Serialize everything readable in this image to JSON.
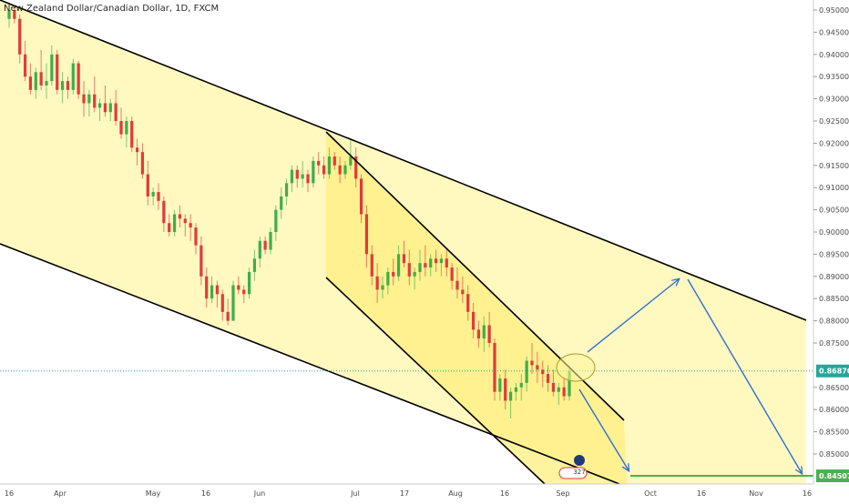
{
  "chart_data": {
    "type": "candlestick",
    "title": "New Zealand Dollar/Canadian Dollar, 1D, FXCM",
    "colors": {
      "up": "#3fae49",
      "down": "#e03b3b",
      "channel_fill": "#fff7b8",
      "inner_fill": "#ffef80",
      "arrow": "#2f6fd6",
      "target_line": "#4caf50",
      "price_line": "#26a69a"
    },
    "y_axis": {
      "ylim": [
        0.8415,
        0.9515
      ],
      "ticks": [
        "0.95000",
        "0.94500",
        "0.94000",
        "0.93500",
        "0.93000",
        "0.92500",
        "0.92000",
        "0.91500",
        "0.91000",
        "0.90500",
        "0.90000",
        "0.89500",
        "0.89000",
        "0.88500",
        "0.88000",
        "0.87500",
        "0.87000",
        "0.86500",
        "0.86000",
        "0.85500",
        "0.85000"
      ]
    },
    "x_axis": {
      "labels": [
        "16",
        "Apr",
        "May",
        "16",
        "Jun",
        "Jul",
        "17",
        "Aug",
        "16",
        "Sep",
        "Oct",
        "16",
        "Nov",
        "16"
      ]
    },
    "current_price": {
      "label": "0.86870",
      "value": 0.8687
    },
    "target_price": {
      "label": "0.84507",
      "value": 0.84507
    },
    "badge": {
      "text": "327"
    },
    "candles": [
      [
        0.948,
        0.9505,
        0.946,
        0.95
      ],
      [
        0.95,
        0.951,
        0.947,
        0.948
      ],
      [
        0.948,
        0.949,
        0.938,
        0.94
      ],
      [
        0.94,
        0.943,
        0.934,
        0.935
      ],
      [
        0.935,
        0.938,
        0.931,
        0.932
      ],
      [
        0.932,
        0.937,
        0.93,
        0.936
      ],
      [
        0.936,
        0.941,
        0.932,
        0.933
      ],
      [
        0.933,
        0.938,
        0.93,
        0.934
      ],
      [
        0.934,
        0.942,
        0.933,
        0.94
      ],
      [
        0.94,
        0.941,
        0.931,
        0.932
      ],
      [
        0.932,
        0.936,
        0.929,
        0.934
      ],
      [
        0.934,
        0.935,
        0.93,
        0.932
      ],
      [
        0.932,
        0.939,
        0.931,
        0.938
      ],
      [
        0.938,
        0.9385,
        0.93,
        0.931
      ],
      [
        0.931,
        0.934,
        0.926,
        0.929
      ],
      [
        0.929,
        0.932,
        0.926,
        0.931
      ],
      [
        0.931,
        0.935,
        0.927,
        0.928
      ],
      [
        0.928,
        0.93,
        0.925,
        0.929
      ],
      [
        0.929,
        0.933,
        0.926,
        0.927
      ],
      [
        0.927,
        0.93,
        0.925,
        0.929
      ],
      [
        0.929,
        0.932,
        0.924,
        0.925
      ],
      [
        0.925,
        0.928,
        0.921,
        0.922
      ],
      [
        0.922,
        0.926,
        0.919,
        0.925
      ],
      [
        0.925,
        0.926,
        0.918,
        0.919
      ],
      [
        0.919,
        0.921,
        0.915,
        0.918
      ],
      [
        0.918,
        0.92,
        0.912,
        0.913
      ],
      [
        0.913,
        0.916,
        0.906,
        0.908
      ],
      [
        0.908,
        0.91,
        0.906,
        0.909
      ],
      [
        0.909,
        0.911,
        0.905,
        0.907
      ],
      [
        0.907,
        0.908,
        0.9,
        0.902
      ],
      [
        0.902,
        0.904,
        0.899,
        0.9
      ],
      [
        0.9,
        0.905,
        0.899,
        0.904
      ],
      [
        0.904,
        0.906,
        0.901,
        0.903
      ],
      [
        0.903,
        0.904,
        0.899,
        0.902
      ],
      [
        0.902,
        0.904,
        0.898,
        0.901
      ],
      [
        0.901,
        0.902,
        0.895,
        0.897
      ],
      [
        0.897,
        0.899,
        0.888,
        0.89
      ],
      [
        0.89,
        0.892,
        0.883,
        0.885
      ],
      [
        0.885,
        0.89,
        0.884,
        0.888
      ],
      [
        0.888,
        0.889,
        0.883,
        0.886
      ],
      [
        0.886,
        0.887,
        0.88,
        0.882
      ],
      [
        0.882,
        0.885,
        0.879,
        0.88
      ],
      [
        0.88,
        0.889,
        0.88,
        0.888
      ],
      [
        0.888,
        0.89,
        0.886,
        0.887
      ],
      [
        0.887,
        0.888,
        0.884,
        0.886
      ],
      [
        0.886,
        0.892,
        0.885,
        0.891
      ],
      [
        0.891,
        0.896,
        0.889,
        0.894
      ],
      [
        0.894,
        0.899,
        0.892,
        0.898
      ],
      [
        0.898,
        0.899,
        0.895,
        0.896
      ],
      [
        0.896,
        0.901,
        0.895,
        0.9
      ],
      [
        0.9,
        0.906,
        0.898,
        0.905
      ],
      [
        0.905,
        0.91,
        0.903,
        0.908
      ],
      [
        0.908,
        0.912,
        0.906,
        0.911
      ],
      [
        0.911,
        0.915,
        0.909,
        0.914
      ],
      [
        0.914,
        0.915,
        0.91,
        0.912
      ],
      [
        0.912,
        0.916,
        0.91,
        0.913
      ],
      [
        0.913,
        0.914,
        0.909,
        0.911
      ],
      [
        0.911,
        0.917,
        0.91,
        0.916
      ],
      [
        0.916,
        0.918,
        0.913,
        0.915
      ],
      [
        0.915,
        0.917,
        0.912,
        0.913
      ],
      [
        0.913,
        0.919,
        0.912,
        0.917
      ],
      [
        0.917,
        0.918,
        0.914,
        0.915
      ],
      [
        0.915,
        0.917,
        0.911,
        0.913
      ],
      [
        0.913,
        0.916,
        0.912,
        0.915
      ],
      [
        0.915,
        0.921,
        0.914,
        0.917
      ],
      [
        0.917,
        0.919,
        0.91,
        0.912
      ],
      [
        0.912,
        0.913,
        0.902,
        0.904
      ],
      [
        0.904,
        0.906,
        0.892,
        0.895
      ],
      [
        0.895,
        0.897,
        0.888,
        0.89
      ],
      [
        0.89,
        0.893,
        0.884,
        0.887
      ],
      [
        0.887,
        0.89,
        0.885,
        0.888
      ],
      [
        0.888,
        0.892,
        0.886,
        0.891
      ],
      [
        0.891,
        0.894,
        0.888,
        0.89
      ],
      [
        0.89,
        0.897,
        0.889,
        0.895
      ],
      [
        0.895,
        0.898,
        0.892,
        0.893
      ],
      [
        0.893,
        0.896,
        0.888,
        0.89
      ],
      [
        0.89,
        0.892,
        0.887,
        0.891
      ],
      [
        0.891,
        0.896,
        0.889,
        0.893
      ],
      [
        0.893,
        0.897,
        0.89,
        0.892
      ],
      [
        0.892,
        0.895,
        0.89,
        0.894
      ],
      [
        0.894,
        0.896,
        0.891,
        0.893
      ],
      [
        0.893,
        0.895,
        0.89,
        0.894
      ],
      [
        0.894,
        0.896,
        0.89,
        0.892
      ],
      [
        0.892,
        0.893,
        0.887,
        0.889
      ],
      [
        0.889,
        0.892,
        0.885,
        0.887
      ],
      [
        0.887,
        0.89,
        0.884,
        0.886
      ],
      [
        0.886,
        0.888,
        0.88,
        0.882
      ],
      [
        0.882,
        0.884,
        0.876,
        0.878
      ],
      [
        0.878,
        0.88,
        0.874,
        0.876
      ],
      [
        0.876,
        0.881,
        0.873,
        0.879
      ],
      [
        0.879,
        0.882,
        0.874,
        0.875
      ],
      [
        0.875,
        0.876,
        0.862,
        0.864
      ],
      [
        0.864,
        0.868,
        0.862,
        0.867
      ],
      [
        0.867,
        0.869,
        0.86,
        0.862
      ],
      [
        0.862,
        0.865,
        0.858,
        0.864
      ],
      [
        0.864,
        0.866,
        0.862,
        0.865
      ],
      [
        0.865,
        0.868,
        0.862,
        0.866
      ],
      [
        0.866,
        0.872,
        0.864,
        0.871
      ],
      [
        0.871,
        0.875,
        0.868,
        0.87
      ],
      [
        0.87,
        0.873,
        0.866,
        0.869
      ],
      [
        0.869,
        0.871,
        0.865,
        0.868
      ],
      [
        0.868,
        0.87,
        0.864,
        0.866
      ],
      [
        0.866,
        0.869,
        0.863,
        0.864
      ],
      [
        0.864,
        0.866,
        0.861,
        0.865
      ],
      [
        0.865,
        0.867,
        0.862,
        0.863
      ],
      [
        0.863,
        0.87,
        0.862,
        0.8687
      ]
    ]
  }
}
